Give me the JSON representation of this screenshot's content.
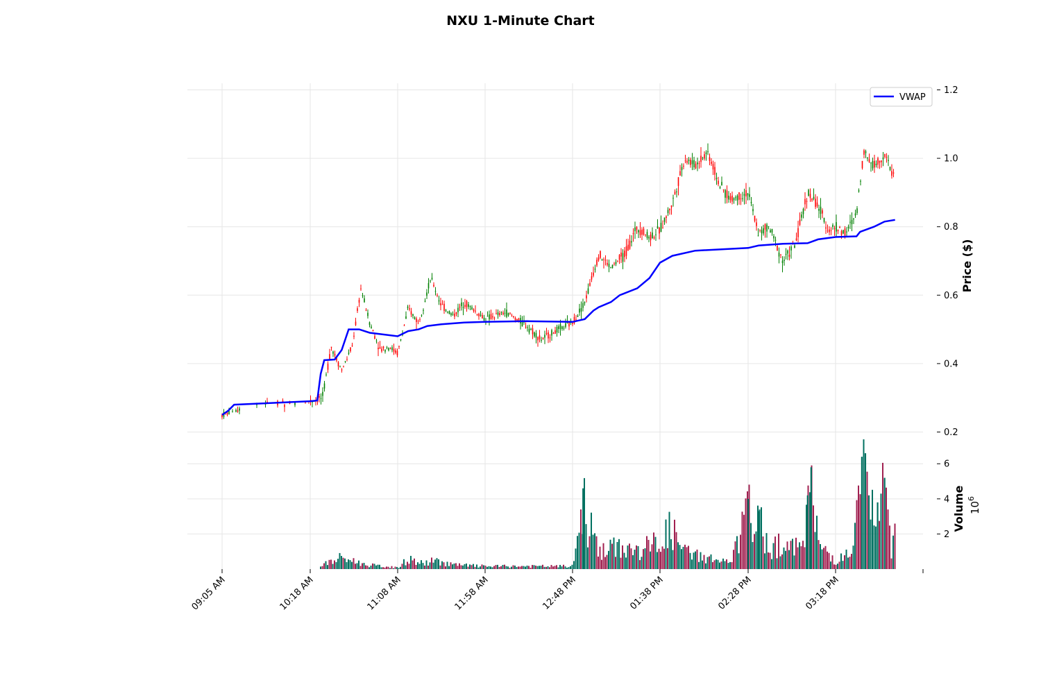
{
  "chart_data": {
    "type": "candlestick",
    "title": "NXU 1-Minute Chart",
    "price_panel": {
      "ylabel": "Price ($)",
      "yticks": [
        "0.2",
        "0.4",
        "0.6",
        "0.8",
        "1.0",
        "1.2"
      ],
      "ylim": [
        0.2,
        1.2
      ],
      "grid": true
    },
    "volume_panel": {
      "ylabel": "Volume",
      "exponent_base": "10",
      "exponent_power": "6",
      "yticks": [
        "2",
        "4",
        "6"
      ],
      "ylim": [
        0,
        6.8
      ],
      "grid": true
    },
    "x_tick_labels": [
      "09:05 AM",
      "10:18 AM",
      "11:08 AM",
      "11:58 AM",
      "12:48 PM",
      "01:38 PM",
      "02:28 PM",
      "03:18 PM"
    ],
    "legend": {
      "label": "VWAP",
      "placement": "top-right"
    },
    "colors": {
      "up": "#008000",
      "down": "#ff0000",
      "vwap": "#0000ff",
      "vol_up": "#007060",
      "vol_down": "#a02050"
    },
    "price_series": [
      {
        "t": "09:05 AM",
        "p": 0.25
      },
      {
        "t": "09:30 AM",
        "p": 0.28
      },
      {
        "t": "10:18 AM",
        "p": 0.29
      },
      {
        "t": "10:25 AM",
        "p": 0.3
      },
      {
        "t": "10:30 AM",
        "p": 0.45
      },
      {
        "t": "10:36 AM",
        "p": 0.38
      },
      {
        "t": "10:42 AM",
        "p": 0.45
      },
      {
        "t": "10:47 AM",
        "p": 0.62
      },
      {
        "t": "10:52 AM",
        "p": 0.52
      },
      {
        "t": "10:58 AM",
        "p": 0.44
      },
      {
        "t": "11:03 AM",
        "p": 0.45
      },
      {
        "t": "11:08 AM",
        "p": 0.43
      },
      {
        "t": "11:14 AM",
        "p": 0.56
      },
      {
        "t": "11:20 AM",
        "p": 0.52
      },
      {
        "t": "11:27 AM",
        "p": 0.65
      },
      {
        "t": "11:33 AM",
        "p": 0.57
      },
      {
        "t": "11:40 AM",
        "p": 0.54
      },
      {
        "t": "11:46 AM",
        "p": 0.58
      },
      {
        "t": "11:58 AM",
        "p": 0.53
      },
      {
        "t": "12:10 PM",
        "p": 0.55
      },
      {
        "t": "12:22 PM",
        "p": 0.51
      },
      {
        "t": "12:30 PM",
        "p": 0.47
      },
      {
        "t": "12:40 PM",
        "p": 0.5
      },
      {
        "t": "12:48 PM",
        "p": 0.52
      },
      {
        "t": "12:55 PM",
        "p": 0.58
      },
      {
        "t": "01:03 PM",
        "p": 0.72
      },
      {
        "t": "01:10 PM",
        "p": 0.68
      },
      {
        "t": "01:18 PM",
        "p": 0.72
      },
      {
        "t": "01:25 PM",
        "p": 0.8
      },
      {
        "t": "01:32 PM",
        "p": 0.77
      },
      {
        "t": "01:38 PM",
        "p": 0.79
      },
      {
        "t": "01:45 PM",
        "p": 0.87
      },
      {
        "t": "01:52 PM",
        "p": 1.0
      },
      {
        "t": "01:58 PM",
        "p": 0.98
      },
      {
        "t": "02:05 PM",
        "p": 1.02
      },
      {
        "t": "02:12 PM",
        "p": 0.92
      },
      {
        "t": "02:18 PM",
        "p": 0.88
      },
      {
        "t": "02:28 PM",
        "p": 0.9
      },
      {
        "t": "02:34 PM",
        "p": 0.78
      },
      {
        "t": "02:40 PM",
        "p": 0.8
      },
      {
        "t": "02:48 PM",
        "p": 0.7
      },
      {
        "t": "02:55 PM",
        "p": 0.75
      },
      {
        "t": "03:02 PM",
        "p": 0.9
      },
      {
        "t": "03:08 PM",
        "p": 0.86
      },
      {
        "t": "03:14 PM",
        "p": 0.79
      },
      {
        "t": "03:18 PM",
        "p": 0.8
      },
      {
        "t": "03:24 PM",
        "p": 0.78
      },
      {
        "t": "03:30 PM",
        "p": 0.84
      },
      {
        "t": "03:34 PM",
        "p": 1.02
      },
      {
        "t": "03:40 PM",
        "p": 0.98
      },
      {
        "t": "03:46 PM",
        "p": 1.01
      },
      {
        "t": "03:52 PM",
        "p": 0.94
      }
    ],
    "vwap_series": [
      {
        "t": "09:05 AM",
        "v": 0.25
      },
      {
        "t": "09:10 AM",
        "v": 0.262
      },
      {
        "t": "09:15 AM",
        "v": 0.28
      },
      {
        "t": "10:18 AM",
        "v": 0.29
      },
      {
        "t": "10:22 AM",
        "v": 0.292
      },
      {
        "t": "10:24 AM",
        "v": 0.37
      },
      {
        "t": "10:26 AM",
        "v": 0.41
      },
      {
        "t": "10:32 AM",
        "v": 0.412
      },
      {
        "t": "10:36 AM",
        "v": 0.44
      },
      {
        "t": "10:40 AM",
        "v": 0.5
      },
      {
        "t": "10:46 AM",
        "v": 0.5
      },
      {
        "t": "10:52 AM",
        "v": 0.49
      },
      {
        "t": "11:08 AM",
        "v": 0.48
      },
      {
        "t": "11:14 AM",
        "v": 0.495
      },
      {
        "t": "11:20 AM",
        "v": 0.5
      },
      {
        "t": "11:25 AM",
        "v": 0.51
      },
      {
        "t": "11:33 AM",
        "v": 0.515
      },
      {
        "t": "11:46 AM",
        "v": 0.52
      },
      {
        "t": "11:58 AM",
        "v": 0.522
      },
      {
        "t": "12:22 PM",
        "v": 0.524
      },
      {
        "t": "12:48 PM",
        "v": 0.522
      },
      {
        "t": "12:55 PM",
        "v": 0.53
      },
      {
        "t": "01:00 PM",
        "v": 0.555
      },
      {
        "t": "01:03 PM",
        "v": 0.565
      },
      {
        "t": "01:10 PM",
        "v": 0.58
      },
      {
        "t": "01:15 PM",
        "v": 0.6
      },
      {
        "t": "01:25 PM",
        "v": 0.62
      },
      {
        "t": "01:32 PM",
        "v": 0.65
      },
      {
        "t": "01:38 PM",
        "v": 0.695
      },
      {
        "t": "01:45 PM",
        "v": 0.715
      },
      {
        "t": "01:58 PM",
        "v": 0.73
      },
      {
        "t": "02:28 PM",
        "v": 0.738
      },
      {
        "t": "02:34 PM",
        "v": 0.745
      },
      {
        "t": "02:48 PM",
        "v": 0.75
      },
      {
        "t": "03:02 PM",
        "v": 0.752
      },
      {
        "t": "03:08 PM",
        "v": 0.763
      },
      {
        "t": "03:18 PM",
        "v": 0.77
      },
      {
        "t": "03:30 PM",
        "v": 0.772
      },
      {
        "t": "03:32 PM",
        "v": 0.785
      },
      {
        "t": "03:40 PM",
        "v": 0.8
      },
      {
        "t": "03:46 PM",
        "v": 0.815
      },
      {
        "t": "03:52 PM",
        "v": 0.82
      }
    ],
    "volume_series": [
      {
        "t": "09:05 AM",
        "v": 0.0
      },
      {
        "t": "10:18 AM",
        "v": 0.0
      },
      {
        "t": "10:24 AM",
        "v": 0.3
      },
      {
        "t": "10:30 AM",
        "v": 0.5
      },
      {
        "t": "10:36 AM",
        "v": 0.8
      },
      {
        "t": "10:42 AM",
        "v": 0.6
      },
      {
        "t": "10:50 AM",
        "v": 0.3
      },
      {
        "t": "11:08 AM",
        "v": 0.1
      },
      {
        "t": "11:14 AM",
        "v": 0.7
      },
      {
        "t": "11:22 AM",
        "v": 0.4
      },
      {
        "t": "11:30 AM",
        "v": 0.6
      },
      {
        "t": "11:40 AM",
        "v": 0.3
      },
      {
        "t": "11:58 AM",
        "v": 0.2
      },
      {
        "t": "12:20 PM",
        "v": 0.2
      },
      {
        "t": "12:48 PM",
        "v": 0.2
      },
      {
        "t": "12:54 PM",
        "v": 4.6
      },
      {
        "t": "01:00 PM",
        "v": 2.2
      },
      {
        "t": "01:05 PM",
        "v": 1.2
      },
      {
        "t": "01:15 PM",
        "v": 1.6
      },
      {
        "t": "01:25 PM",
        "v": 1.2
      },
      {
        "t": "01:38 PM",
        "v": 2.0
      },
      {
        "t": "01:44 PM",
        "v": 2.8
      },
      {
        "t": "01:52 PM",
        "v": 1.2
      },
      {
        "t": "02:05 PM",
        "v": 0.8
      },
      {
        "t": "02:18 PM",
        "v": 0.4
      },
      {
        "t": "02:28 PM",
        "v": 4.0
      },
      {
        "t": "02:34 PM",
        "v": 3.3
      },
      {
        "t": "02:40 PM",
        "v": 1.5
      },
      {
        "t": "02:48 PM",
        "v": 1.9
      },
      {
        "t": "02:55 PM",
        "v": 1.3
      },
      {
        "t": "03:02 PM",
        "v": 4.2
      },
      {
        "t": "03:04 PM",
        "v": 5.8
      },
      {
        "t": "03:08 PM",
        "v": 1.8
      },
      {
        "t": "03:18 PM",
        "v": 0.6
      },
      {
        "t": "03:28 PM",
        "v": 1.2
      },
      {
        "t": "03:33 PM",
        "v": 6.4
      },
      {
        "t": "03:35 PM",
        "v": 6.6
      },
      {
        "t": "03:37 PM",
        "v": 4.2
      },
      {
        "t": "03:42 PM",
        "v": 3.8
      },
      {
        "t": "03:46 PM",
        "v": 5.2
      },
      {
        "t": "03:50 PM",
        "v": 1.5
      },
      {
        "t": "03:52 PM",
        "v": 2.6
      }
    ]
  }
}
